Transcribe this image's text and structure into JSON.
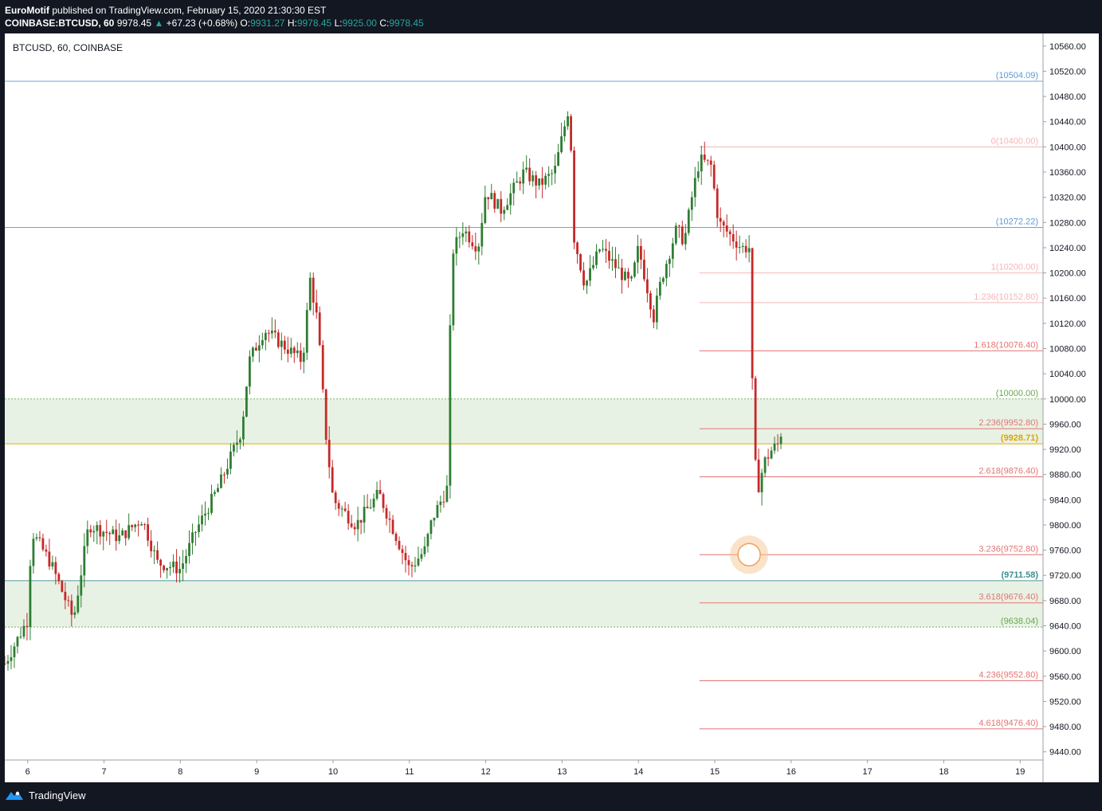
{
  "header": {
    "author": "EuroMotif",
    "published_text": "published on TradingView.com, February 15, 2020 21:30:30 EST",
    "symbol": "COINBASE:BTCUSD, 60",
    "last": "9978.45",
    "change": "+67.23 (+0.68%)",
    "o_label": "O:",
    "o": "9931.27",
    "h_label": "H:",
    "h": "9978.45",
    "l_label": "L:",
    "l": "9925.00",
    "c_label": "C:",
    "c": "9978.45"
  },
  "footer": {
    "brand": "TradingView"
  },
  "colors": {
    "up": "#26a69a",
    "down": "#ef5350",
    "candle_up": "#2e7d32",
    "candle_down": "#c62828",
    "hline": "#5b9bd5",
    "zone": "#e8f2e4",
    "fib": "#e57373",
    "fib_light": "#f4b6b6",
    "level_green": "#6aa84f",
    "level_yellow": "#e0a400"
  },
  "chart_data": {
    "type": "candlestick",
    "title": "BTCUSD, 60, COINBASE",
    "x_ticks": [
      {
        "label": "6",
        "t": 0.3
      },
      {
        "label": "7",
        "t": 1.3
      },
      {
        "label": "8",
        "t": 2.3
      },
      {
        "label": "9",
        "t": 3.3
      },
      {
        "label": "10",
        "t": 4.3
      },
      {
        "label": "11",
        "t": 5.3
      },
      {
        "label": "12",
        "t": 6.3
      },
      {
        "label": "13",
        "t": 7.3
      },
      {
        "label": "14",
        "t": 8.3
      },
      {
        "label": "15",
        "t": 9.3
      },
      {
        "label": "16",
        "t": 10.3
      },
      {
        "label": "17",
        "t": 11.3
      },
      {
        "label": "18",
        "t": 12.3
      },
      {
        "label": "19",
        "t": 13.3
      }
    ],
    "x_range": [
      0,
      13.6
    ],
    "y_range": [
      9427,
      10580
    ],
    "y_ticks": [
      "10560.00",
      "10520.00",
      "10480.00",
      "10440.00",
      "10400.00",
      "10360.00",
      "10320.00",
      "10280.00",
      "10240.00",
      "10200.00",
      "10160.00",
      "10120.00",
      "10080.00",
      "10040.00",
      "10000.00",
      "9960.00",
      "9920.00",
      "9880.00",
      "9840.00",
      "9800.00",
      "9760.00",
      "9720.00",
      "9680.00",
      "9640.00",
      "9600.00",
      "9560.00",
      "9520.00",
      "9480.00",
      "9440.00"
    ],
    "anchors": [
      [
        0.0,
        9580
      ],
      [
        0.3,
        9650
      ],
      [
        0.35,
        9790
      ],
      [
        0.6,
        9740
      ],
      [
        0.9,
        9650
      ],
      [
        1.1,
        9800
      ],
      [
        1.5,
        9780
      ],
      [
        1.8,
        9810
      ],
      [
        2.0,
        9740
      ],
      [
        2.3,
        9730
      ],
      [
        2.5,
        9790
      ],
      [
        2.8,
        9860
      ],
      [
        3.1,
        9950
      ],
      [
        3.2,
        10060
      ],
      [
        3.4,
        10110
      ],
      [
        3.6,
        10090
      ],
      [
        3.9,
        10060
      ],
      [
        4.0,
        10190
      ],
      [
        4.1,
        10120
      ],
      [
        4.2,
        9950
      ],
      [
        4.3,
        9840
      ],
      [
        4.6,
        9800
      ],
      [
        4.9,
        9850
      ],
      [
        5.2,
        9760
      ],
      [
        5.3,
        9730
      ],
      [
        5.5,
        9760
      ],
      [
        5.6,
        9810
      ],
      [
        5.8,
        9860
      ],
      [
        5.85,
        10230
      ],
      [
        6.0,
        10270
      ],
      [
        6.2,
        10240
      ],
      [
        6.3,
        10330
      ],
      [
        6.5,
        10300
      ],
      [
        6.8,
        10360
      ],
      [
        7.0,
        10340
      ],
      [
        7.2,
        10360
      ],
      [
        7.4,
        10470
      ],
      [
        7.45,
        10260
      ],
      [
        7.6,
        10180
      ],
      [
        7.8,
        10240
      ],
      [
        8.0,
        10210
      ],
      [
        8.2,
        10180
      ],
      [
        8.3,
        10240
      ],
      [
        8.5,
        10130
      ],
      [
        8.6,
        10190
      ],
      [
        8.8,
        10270
      ],
      [
        8.9,
        10250
      ],
      [
        9.0,
        10320
      ],
      [
        9.1,
        10380
      ],
      [
        9.25,
        10370
      ],
      [
        9.35,
        10280
      ],
      [
        9.5,
        10260
      ],
      [
        9.65,
        10240
      ],
      [
        9.75,
        10240
      ],
      [
        9.8,
        9980
      ],
      [
        9.85,
        9850
      ],
      [
        9.95,
        9900
      ],
      [
        10.05,
        9920
      ],
      [
        10.15,
        9930
      ],
      [
        10.2,
        9978
      ]
    ],
    "fib_levels": [
      {
        "label": "0(10400.00)",
        "value": 10400.0
      },
      {
        "label": "1(10200.00)",
        "value": 10200.0
      },
      {
        "label": "1.236(10152.80)",
        "value": 10152.8
      },
      {
        "label": "1.618(10076.40)",
        "value": 10076.4
      },
      {
        "label": "2.236(9952.80)",
        "value": 9952.8
      },
      {
        "label": "2.618(9876.40)",
        "value": 9876.4
      },
      {
        "label": "3.236(9752.80)",
        "value": 9752.8
      },
      {
        "label": "3.618(9676.40)",
        "value": 9676.4
      },
      {
        "label": "4.236(9552.80)",
        "value": 9552.8
      },
      {
        "label": "4.618(9476.40)",
        "value": 9476.4
      }
    ],
    "fib_start_t": 9.1,
    "horizontal_levels": [
      {
        "label": "(10504.09)",
        "value": 10504.09,
        "color": "#5b9bd5"
      },
      {
        "label": "(10272.22)",
        "value": 10272.22,
        "color": "#5b9bd5"
      },
      {
        "label": "(10000.00)",
        "value": 10000.0,
        "color": "#6aa84f"
      },
      {
        "label": "(9928.71)",
        "value": 9928.71,
        "color": "#e0a400"
      },
      {
        "label": "(9711.58)",
        "value": 9711.58,
        "color": "#3d8f8f"
      },
      {
        "label": "(9638.04)",
        "value": 9638.04,
        "color": "#6aa84f"
      }
    ],
    "zones": [
      [
        9928.71,
        10000.0
      ],
      [
        9638.04,
        9711.58
      ]
    ],
    "marker": {
      "t": 9.75,
      "value": 9752.8
    }
  }
}
